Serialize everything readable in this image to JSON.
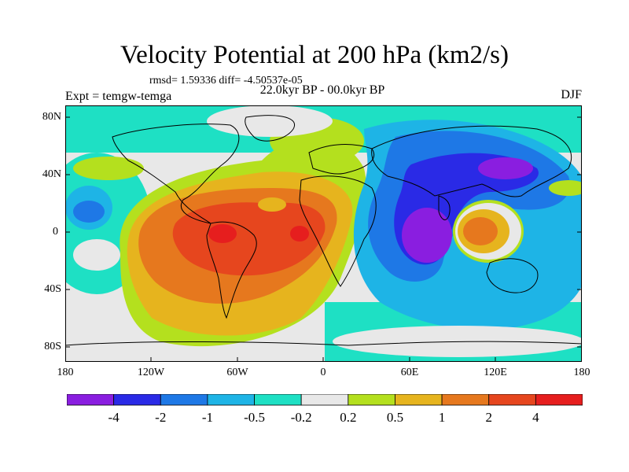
{
  "title": "Velocity Potential at 200 hPa (km2/s)",
  "stats": "rmsd= 1.59336 diff= -4.50537e-05",
  "subtitle": "22.0kyr BP - 00.0kyr BP",
  "left_label": "Expt = temgw-temga",
  "right_label": "DJF",
  "lat_labels": [
    "80N",
    "40N",
    "0",
    "40S",
    "80S"
  ],
  "lon_labels": [
    "180",
    "120W",
    "60W",
    "0",
    "60E",
    "120E",
    "180"
  ],
  "colorbar": {
    "labels": [
      "-4",
      "-2",
      "-1",
      "-0.5",
      "-0.2",
      "0.2",
      "0.5",
      "1",
      "2",
      "4"
    ],
    "colors": [
      "#8a1ee0",
      "#2a2ae6",
      "#1e78e6",
      "#1eb4e6",
      "#1ee0c4",
      "#e8e8e8",
      "#b4e01e",
      "#e6b41e",
      "#e6781e",
      "#e6461e",
      "#e61e1e"
    ]
  },
  "chart_data": {
    "type": "contour-map",
    "variable": "Velocity Potential at 200 hPa",
    "units": "km2/s",
    "levels": [
      -4,
      -2,
      -1,
      -0.5,
      -0.2,
      0.2,
      0.5,
      1,
      2,
      4
    ],
    "lon_range": [
      -180,
      180
    ],
    "lat_range": [
      -90,
      90
    ],
    "features": [
      {
        "name": "positive max over tropical Atlantic/S America",
        "lon": -60,
        "lat": 0,
        "value": 4
      },
      {
        "name": "positive max mid-Atlantic",
        "lon": -15,
        "lat": 0,
        "value": 4
      },
      {
        "name": "negative min over western Indian Ocean",
        "lon": 60,
        "lat": -5,
        "value": -4
      },
      {
        "name": "positive cell over Maritime Continent",
        "lon": 110,
        "lat": -5,
        "value": 2
      }
    ]
  }
}
